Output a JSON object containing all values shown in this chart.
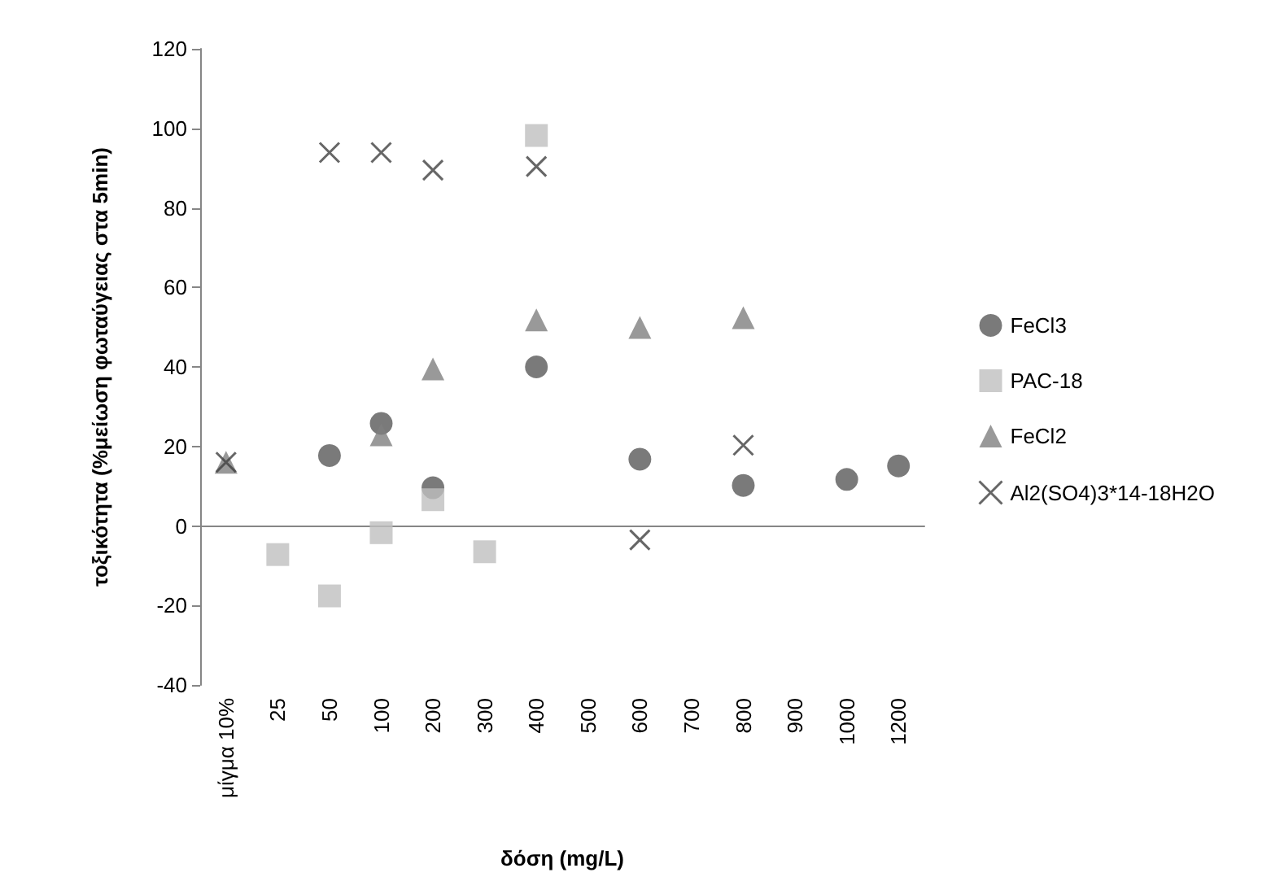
{
  "chart_data": {
    "type": "scatter",
    "xlabel": "δόση (mg/L)",
    "ylabel": "τοξικότητα (%μείωση φωταύγειας στα 5min)",
    "categories": [
      "μίγμα 10%",
      "25",
      "50",
      "100",
      "200",
      "300",
      "400",
      "500",
      "600",
      "700",
      "800",
      "900",
      "1000",
      "1200"
    ],
    "series": [
      {
        "name": "FeCl3",
        "color": "#595959",
        "marker": "circle",
        "values": [
          null,
          null,
          17.7,
          25.8,
          9.6,
          null,
          40,
          null,
          16.8,
          null,
          10.2,
          null,
          11.7,
          15.1
        ]
      },
      {
        "name": "PAC-18",
        "color": "#bfbfbf",
        "marker": "square",
        "values": [
          null,
          -7.2,
          -17.6,
          -1.7,
          6.6,
          -6.5,
          98.2,
          null,
          null,
          null,
          null,
          null,
          null,
          null
        ]
      },
      {
        "name": "FeCl2",
        "color": "#808080",
        "marker": "triangle",
        "values": [
          16,
          null,
          null,
          22.9,
          39.5,
          null,
          51.8,
          null,
          49.9,
          null,
          52.4,
          null,
          null,
          null
        ]
      },
      {
        "name": "Al2(SO4)3*14-18H2O",
        "color": "#404040",
        "marker": "cross",
        "values": [
          16,
          null,
          93.9,
          93.9,
          89.5,
          null,
          90.4,
          null,
          -3.5,
          null,
          20.3,
          null,
          null,
          null
        ]
      }
    ],
    "ylim": [
      -40,
      120
    ],
    "yticks": [
      -40,
      -20,
      0,
      20,
      40,
      60,
      80,
      100,
      120
    ],
    "legend": "right"
  }
}
